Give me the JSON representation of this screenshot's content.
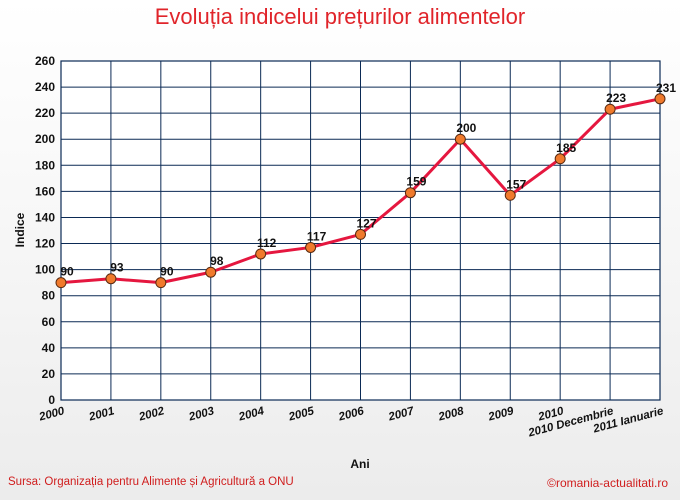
{
  "chart_data": {
    "type": "line",
    "title": "Evoluția indicelui prețurilor alimentelor",
    "xlabel": "Ani",
    "ylabel": "Indice",
    "categories": [
      "2000",
      "2001",
      "2002",
      "2003",
      "2004",
      "2005",
      "2006",
      "2007",
      "2008",
      "2009",
      "2010",
      "2010 Decembrie",
      "2011 Ianuarie"
    ],
    "values": [
      90,
      93,
      90,
      98,
      112,
      117,
      127,
      159,
      200,
      157,
      185,
      223,
      231
    ],
    "ylim": [
      0,
      260
    ],
    "yticks": [
      0,
      20,
      40,
      60,
      80,
      100,
      120,
      140,
      160,
      180,
      200,
      220,
      240,
      260
    ],
    "grid": true,
    "line_color": "#e5173f",
    "marker_color": "#f07a2c"
  },
  "footer": {
    "source": "Sursa: Organizația pentru Alimente și Agricultură a ONU",
    "copyright": "©romania-actualitati.ro"
  }
}
